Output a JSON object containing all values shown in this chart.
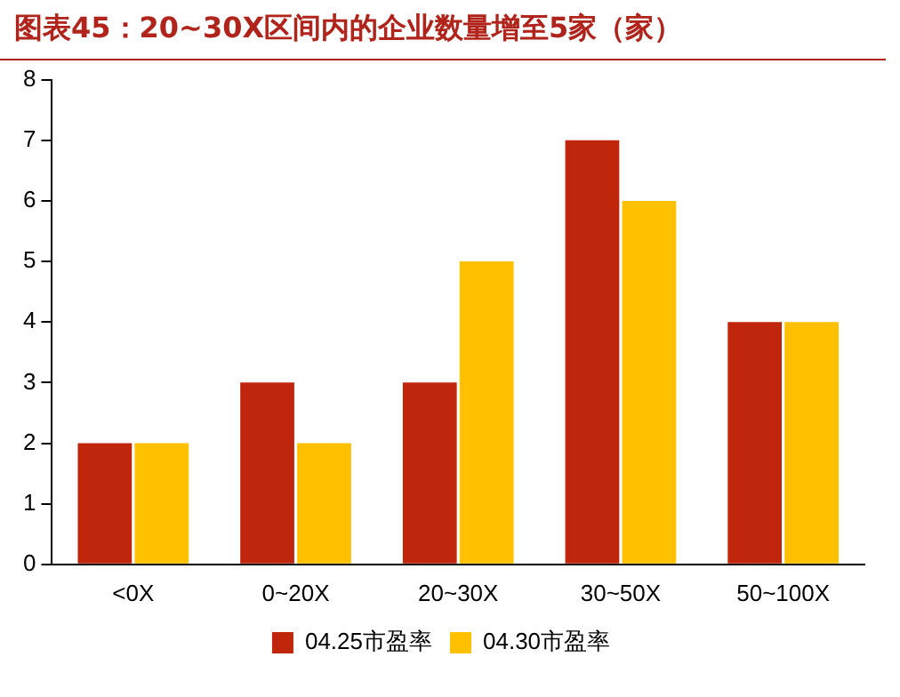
{
  "chart_data": {
    "type": "bar",
    "title": "图表45：20~30X区间内的企业数量增至5家（家）",
    "categories": [
      "<0X",
      "0~20X",
      "20~30X",
      "30~50X",
      "50~100X"
    ],
    "series": [
      {
        "name": "04.25市盈率",
        "color": "#c0260b",
        "values": [
          2,
          3,
          3,
          7,
          4
        ]
      },
      {
        "name": "04.30市盈率",
        "color": "#ffc000",
        "values": [
          2,
          2,
          5,
          6,
          4
        ]
      }
    ],
    "ylim": [
      0,
      8
    ],
    "yticks": [
      0,
      1,
      2,
      3,
      4,
      5,
      6,
      7,
      8
    ],
    "grid": false,
    "legend": "bottom"
  }
}
